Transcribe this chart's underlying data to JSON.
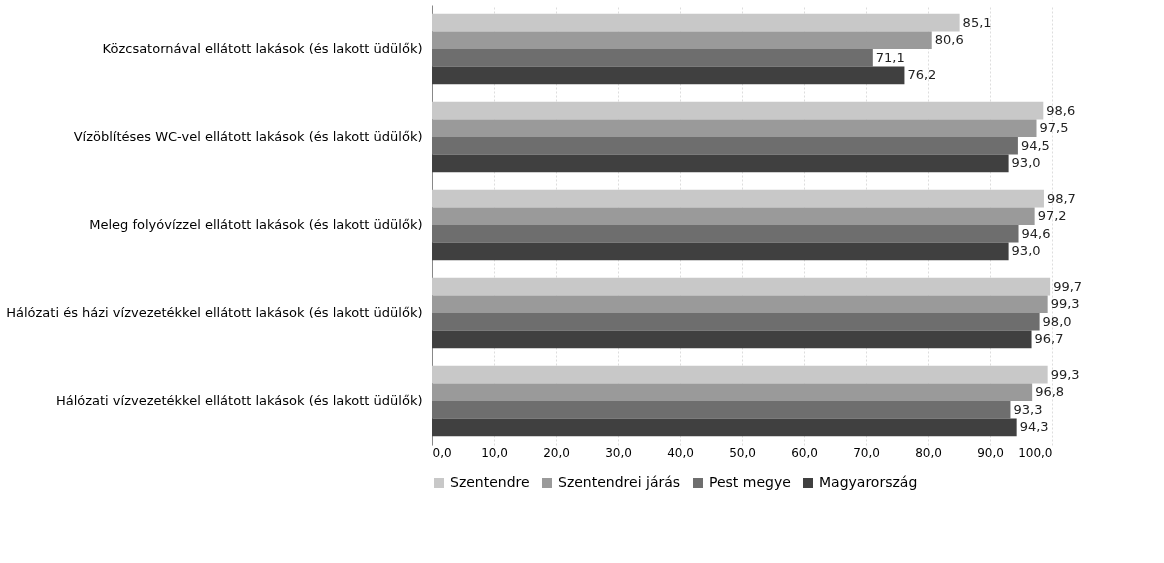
{
  "chart_data": {
    "type": "bar",
    "orientation": "horizontal",
    "categories": [
      "Közcsatornával ellátott lakások (és lakott üdülők)",
      "Vízöblítéses WC-vel ellátott lakások (és lakott üdülők)",
      "Meleg folyóvízzel ellátott lakások (és lakott üdülők)",
      "Hálózati és házi vízvezetékkel ellátott lakások (és lakott üdülők)",
      "Hálózati vízvezetékkel ellátott lakások (és lakott üdülők)"
    ],
    "series": [
      {
        "name": "Szentendre",
        "color": "#c8c8c8",
        "values": [
          85.1,
          98.6,
          98.7,
          99.7,
          99.3
        ],
        "value_labels": [
          "85,1",
          "98,6",
          "98,7",
          "99,7",
          "99,3"
        ]
      },
      {
        "name": "Szentendrei járás",
        "color": "#9a9a9a",
        "values": [
          80.6,
          97.5,
          97.2,
          99.3,
          96.8
        ],
        "value_labels": [
          "80,6",
          "97,5",
          "97,2",
          "99,3",
          "96,8"
        ]
      },
      {
        "name": "Pest megye",
        "color": "#6e6e6e",
        "values": [
          71.1,
          94.5,
          94.6,
          98.0,
          93.3
        ],
        "value_labels": [
          "71,1",
          "94,5",
          "94,6",
          "98,0",
          "93,3"
        ]
      },
      {
        "name": "Magyarország",
        "color": "#404040",
        "values": [
          76.2,
          93.0,
          93.0,
          96.7,
          94.3
        ],
        "value_labels": [
          "76,2",
          "93,0",
          "93,0",
          "96,7",
          "94,3"
        ]
      }
    ],
    "xlim": [
      0,
      100
    ],
    "xticks": [
      {
        "value": 0,
        "label": "0,0"
      },
      {
        "value": 10,
        "label": "10,0"
      },
      {
        "value": 20,
        "label": "20,0"
      },
      {
        "value": 30,
        "label": "30,0"
      },
      {
        "value": 40,
        "label": "40,0"
      },
      {
        "value": 50,
        "label": "50,0"
      },
      {
        "value": 60,
        "label": "60,0"
      },
      {
        "value": 70,
        "label": "70,0"
      },
      {
        "value": 80,
        "label": "80,0"
      },
      {
        "value": 90,
        "label": "90,0"
      },
      {
        "value": 100,
        "label": "100,0"
      }
    ],
    "grid": "x",
    "legend": "bottom"
  }
}
